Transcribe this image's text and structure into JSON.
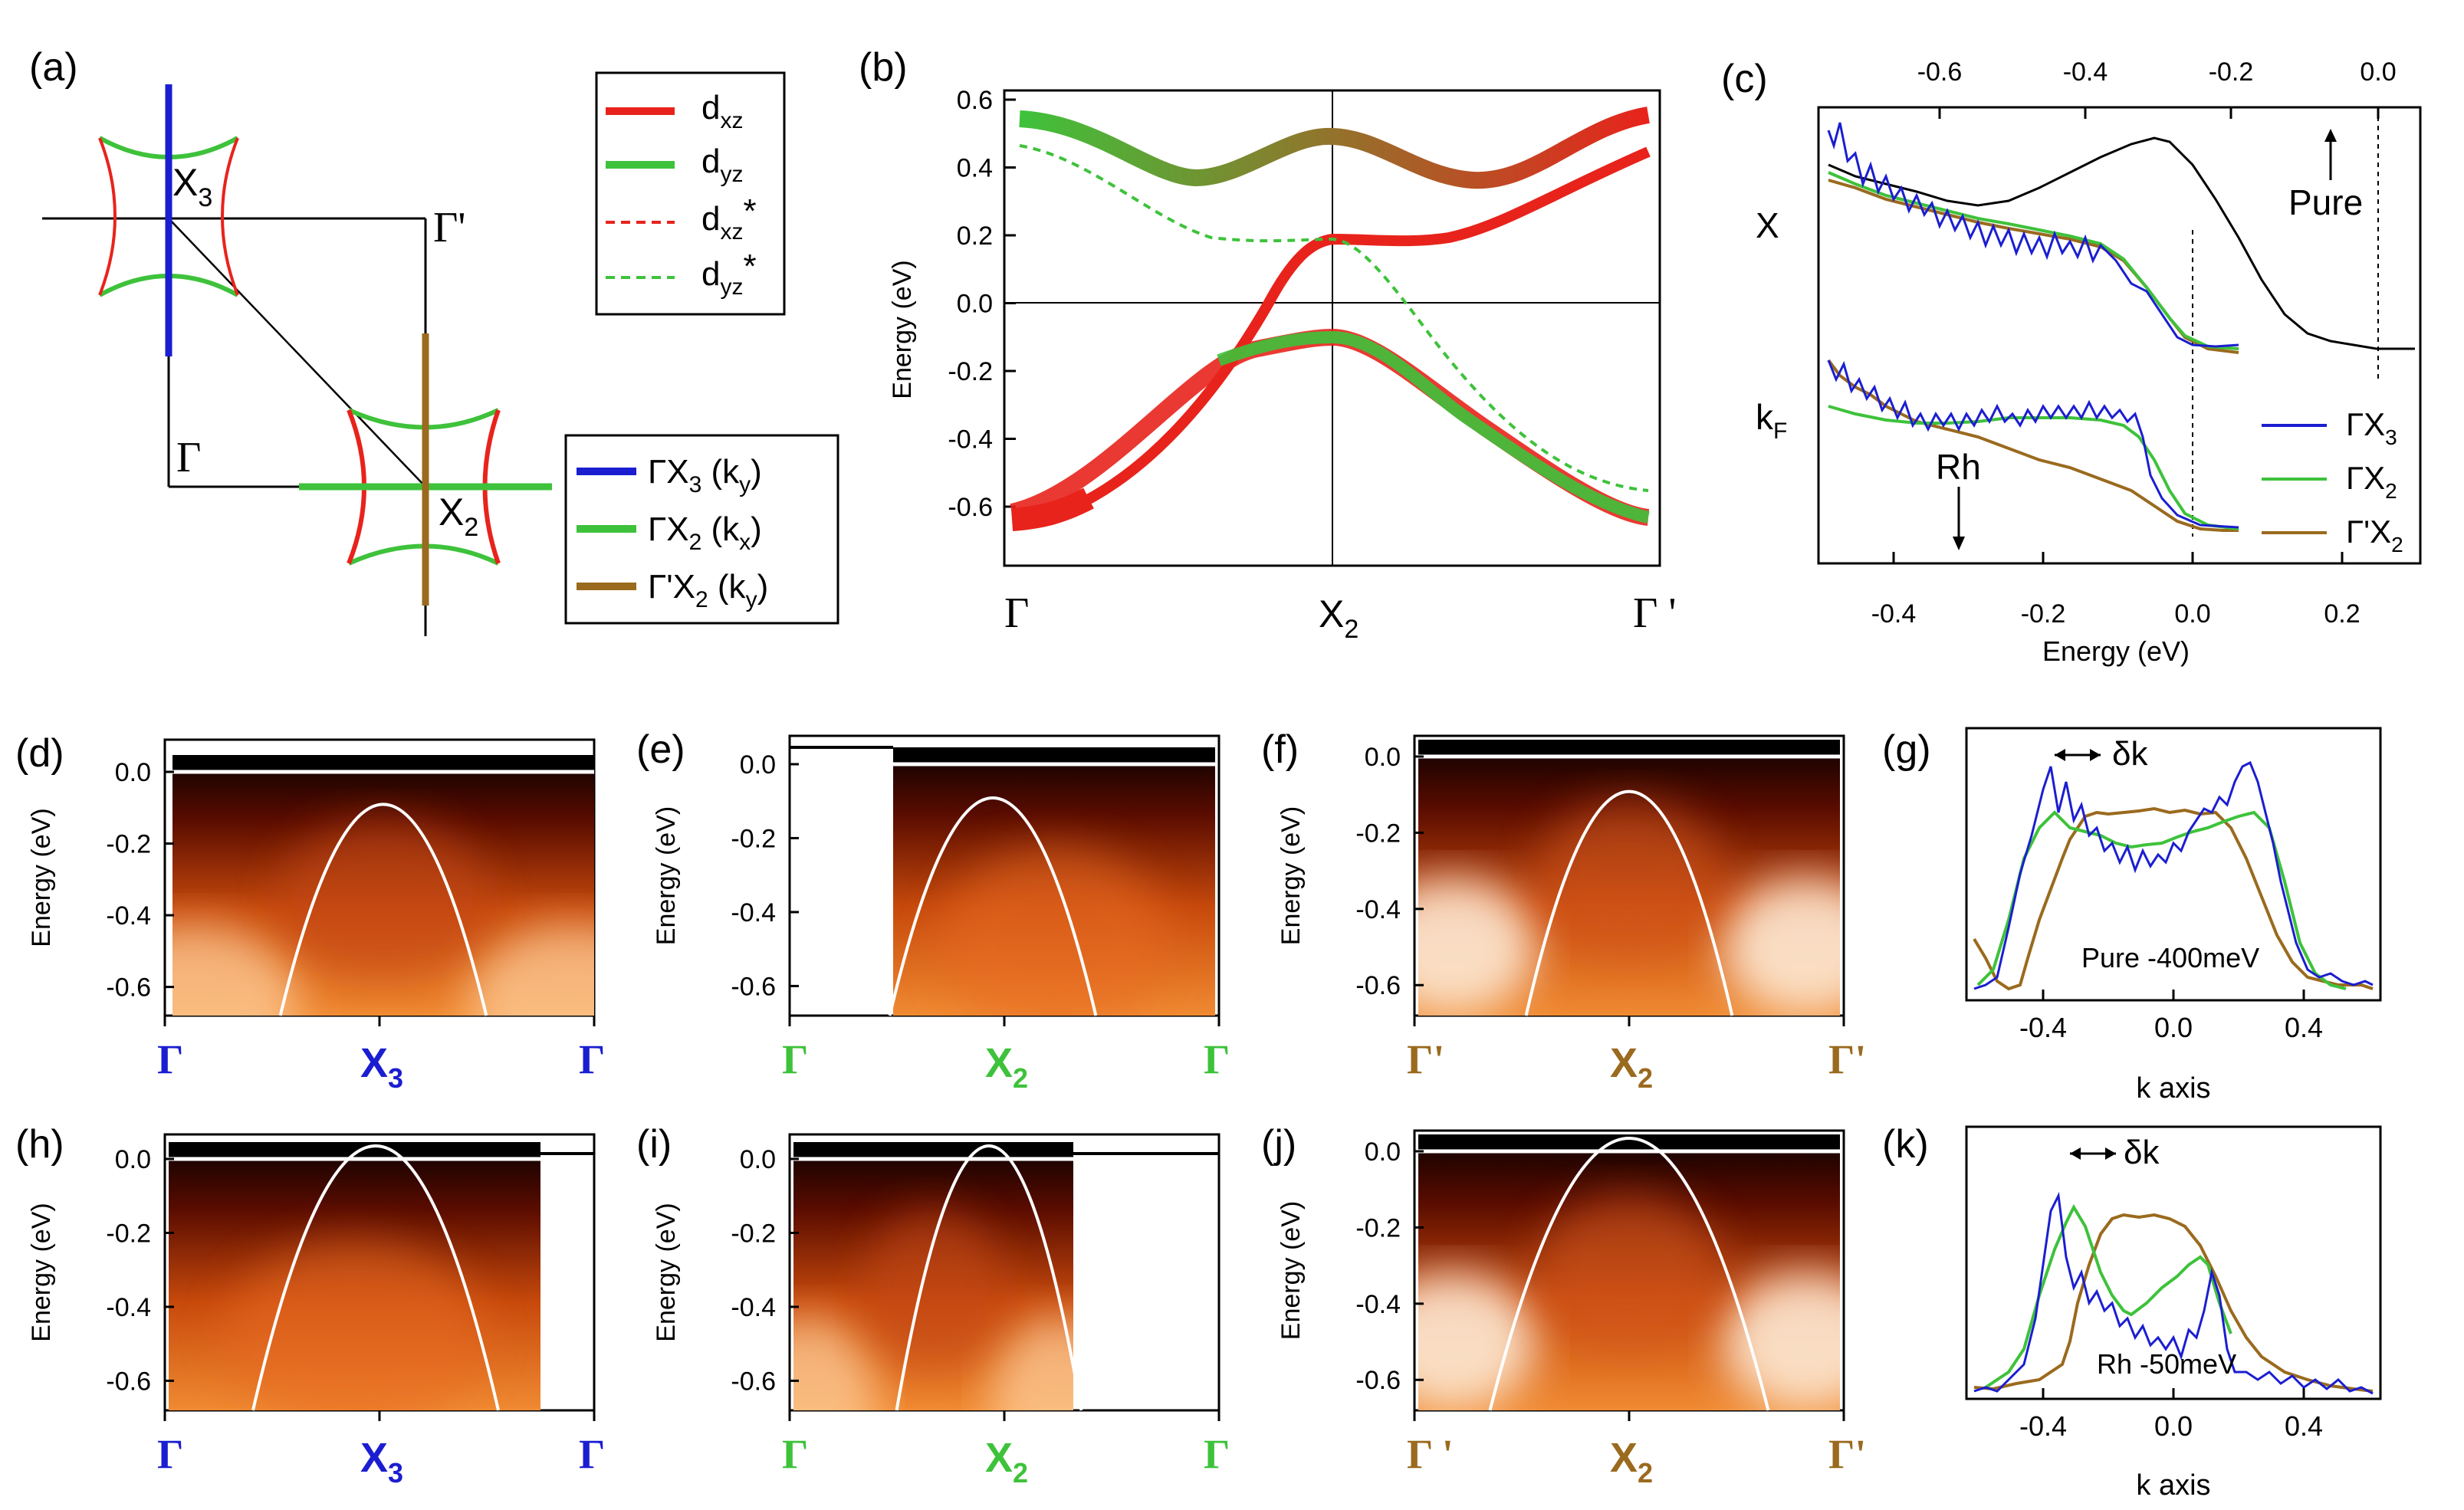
{
  "colors": {
    "red": "#e8231c",
    "green": "#3ec23b",
    "blue": "#1b1ed0",
    "brown": "#9a6a1e",
    "black": "#000000"
  },
  "panels": {
    "a": {
      "label": "(a)",
      "points": {
        "x3": "X",
        "x3_sub": "3",
        "gp": "Γ'",
        "g": "Γ",
        "x2": "X",
        "x2_sub": "2"
      },
      "legend": [
        {
          "main": "ΓX",
          "sub": "3",
          "tail": " (k",
          "sub2": "y",
          "end": ")",
          "color": "blue"
        },
        {
          "main": "ΓX",
          "sub": "2",
          "tail": " (k",
          "sub2": "x",
          "end": ")",
          "color": "green"
        },
        {
          "main": "Γ'X",
          "sub": "2",
          "tail": " (k",
          "sub2": "y",
          "end": ")",
          "color": "brown"
        }
      ]
    },
    "b": {
      "label": "(b)",
      "ylabel": "Energy (eV)",
      "yticks": [
        "0.6",
        "0.4",
        "0.2",
        "0.0",
        "-0.2",
        "-0.4",
        "-0.6"
      ],
      "xlabels": {
        "g": "Γ",
        "x2": "X",
        "x2_sub": "2",
        "gp": "Γ '"
      },
      "legend": [
        {
          "main": "d",
          "sub": "xz",
          "star": "",
          "style": "solid",
          "color": "red"
        },
        {
          "main": "d",
          "sub": "yz",
          "star": "",
          "style": "solid",
          "color": "green"
        },
        {
          "main": "d",
          "sub": "xz",
          "star": "*",
          "style": "dashed",
          "color": "red"
        },
        {
          "main": "d",
          "sub": "yz",
          "star": "*",
          "style": "dashed",
          "color": "green"
        }
      ]
    },
    "c": {
      "label": "(c)",
      "xlabel": "Energy (eV)",
      "xticks_bottom": [
        "-0.4",
        "-0.2",
        "0.0",
        "0.2"
      ],
      "xticks_top": [
        "-0.6",
        "-0.4",
        "-0.2",
        "0.0"
      ],
      "row_x": "X",
      "row_kf": "k",
      "row_kf_sub": "F",
      "pure": "Pure",
      "rh": "Rh",
      "legend": [
        {
          "main": "ΓX",
          "sub": "3",
          "color": "blue"
        },
        {
          "main": "ΓX",
          "sub": "2",
          "color": "green"
        },
        {
          "main": "Γ'X",
          "sub": "2",
          "color": "brown"
        }
      ]
    },
    "d": {
      "label": "(d)",
      "ylabel": "Energy (eV)",
      "xl": "Γ",
      "xm": "X",
      "xm_sub": "3",
      "xr": "Γ",
      "color": "blue"
    },
    "e": {
      "label": "(e)",
      "ylabel": "Energy (eV)",
      "xl": "Γ",
      "xm": "X",
      "xm_sub": "2",
      "xr": "Γ",
      "color": "green"
    },
    "f": {
      "label": "(f)",
      "ylabel": "Energy (eV)",
      "xl": "Γ'",
      "xm": "X",
      "xm_sub": "2",
      "xr": "Γ'",
      "color": "brown"
    },
    "g": {
      "label": "(g)",
      "xlabel": "k axis",
      "annotation": "Pure -400meV",
      "dk": "δk",
      "xticks": [
        "-0.4",
        "0.0",
        "0.4"
      ]
    },
    "h": {
      "label": "(h)",
      "ylabel": "Energy (eV)",
      "xl": "Γ",
      "xm": "X",
      "xm_sub": "3",
      "xr": "Γ",
      "color": "blue"
    },
    "i": {
      "label": "(i)",
      "ylabel": "Energy (eV)",
      "xl": "Γ",
      "xm": "X",
      "xm_sub": "2",
      "xr": "Γ",
      "color": "green"
    },
    "j": {
      "label": "(j)",
      "ylabel": "Energy (eV)",
      "xl": "Γ '",
      "xm": "X",
      "xm_sub": "2",
      "xr": "Γ'",
      "color": "brown"
    },
    "k": {
      "label": "(k)",
      "xlabel": "k axis",
      "annotation": "Rh -50meV",
      "dk": "δk",
      "xticks": [
        "-0.4",
        "0.0",
        "0.4"
      ]
    }
  },
  "map_yticks": [
    "0.0",
    "-0.2",
    "-0.4",
    "-0.6"
  ],
  "chart_data": [
    {
      "type": "line",
      "panel": "b",
      "ylabel": "Energy (eV)",
      "ylim": [
        -0.7,
        0.65
      ],
      "categories": [
        "Γ",
        "X2",
        "Γ'"
      ],
      "series": [
        {
          "name": "dxz",
          "x": [
            0,
            0.25,
            0.5,
            0.75,
            1.0
          ],
          "y": [
            -0.58,
            -0.2,
            0.19,
            0.32,
            0.57
          ]
        },
        {
          "name": "dyz",
          "x": [
            0,
            0.25,
            0.5,
            0.75,
            1.0
          ],
          "y": [
            0.55,
            0.4,
            0.49,
            0.4,
            0.6
          ]
        },
        {
          "name": "dxz*",
          "x": [
            0,
            0.25,
            0.5,
            0.75,
            1.0
          ],
          "y": [
            -0.64,
            -0.37,
            -0.11,
            -0.37,
            -0.65
          ]
        },
        {
          "name": "dyz*",
          "x": [
            0,
            0.25,
            0.5,
            0.75,
            1.0
          ],
          "y": [
            0.47,
            0.24,
            0.19,
            -0.35,
            -0.57
          ]
        }
      ]
    },
    {
      "type": "line",
      "panel": "c",
      "xlabel": "Energy (eV)",
      "xlim": [
        -0.5,
        0.3
      ],
      "series": [
        {
          "name": "ΓX3",
          "x": [
            -0.5,
            -0.3,
            -0.15,
            -0.05,
            0.0,
            0.08
          ],
          "y": [
            0.9,
            0.78,
            0.72,
            0.6,
            0.45,
            0.43
          ]
        },
        {
          "name": "ΓX2",
          "x": [
            -0.5,
            -0.3,
            -0.15,
            -0.05,
            0.0,
            0.08
          ],
          "y": [
            0.83,
            0.79,
            0.74,
            0.6,
            0.44,
            0.43
          ]
        },
        {
          "name": "Γ'X2",
          "x": [
            -0.5,
            -0.3,
            -0.15,
            -0.05,
            0.0,
            0.08
          ],
          "y": [
            0.84,
            0.77,
            0.73,
            0.6,
            0.44,
            0.42
          ]
        },
        {
          "name": "Pure",
          "x": [
            -0.5,
            -0.4,
            -0.3,
            -0.2,
            -0.1,
            0.0,
            0.05
          ],
          "y": [
            0.86,
            0.84,
            0.9,
            1.05,
            0.75,
            0.45,
            0.44
          ]
        }
      ]
    },
    {
      "type": "line",
      "panel": "g",
      "xlabel": "k axis",
      "xlim": [
        -0.65,
        0.65
      ],
      "series": [
        {
          "name": "ΓX3",
          "x": [
            -0.65,
            -0.45,
            -0.38,
            -0.3,
            -0.1,
            0.0,
            0.2,
            0.38,
            0.42,
            0.55,
            0.65
          ],
          "y": [
            0.05,
            0.45,
            0.85,
            0.65,
            0.55,
            0.6,
            0.75,
            0.85,
            0.75,
            0.2,
            0.05
          ]
        },
        {
          "name": "ΓX2",
          "x": [
            -0.6,
            -0.4,
            -0.33,
            -0.2,
            0.0,
            0.2,
            0.33,
            0.45,
            0.6
          ],
          "y": [
            0.05,
            0.55,
            0.75,
            0.65,
            0.58,
            0.68,
            0.72,
            0.35,
            0.05
          ]
        },
        {
          "name": "Γ'X2",
          "x": [
            -0.65,
            -0.5,
            -0.3,
            -0.2,
            0.0,
            0.2,
            0.3,
            0.45,
            0.65
          ],
          "y": [
            0.2,
            0.05,
            0.3,
            0.68,
            0.72,
            0.7,
            0.55,
            0.15,
            0.05
          ]
        }
      ]
    },
    {
      "type": "line",
      "panel": "k",
      "xlabel": "k axis",
      "xlim": [
        -0.65,
        0.65
      ],
      "series": [
        {
          "name": "ΓX3",
          "x": [
            -0.65,
            -0.45,
            -0.3,
            -0.26,
            -0.1,
            0.2,
            0.3,
            0.4,
            0.65
          ],
          "y": [
            0.05,
            0.15,
            0.85,
            0.5,
            0.35,
            0.25,
            0.45,
            0.1,
            0.03
          ]
        },
        {
          "name": "ΓX2",
          "x": [
            -0.55,
            -0.3,
            -0.2,
            0.0,
            0.25,
            0.35
          ],
          "y": [
            0.05,
            0.55,
            0.82,
            0.35,
            0.55,
            0.3
          ]
        },
        {
          "name": "Γ'X2",
          "x": [
            -0.65,
            -0.35,
            -0.15,
            -0.05,
            0.1,
            0.25,
            0.5,
            0.65
          ],
          "y": [
            0.05,
            0.05,
            0.45,
            0.8,
            0.78,
            0.55,
            0.12,
            0.05
          ]
        }
      ]
    }
  ]
}
